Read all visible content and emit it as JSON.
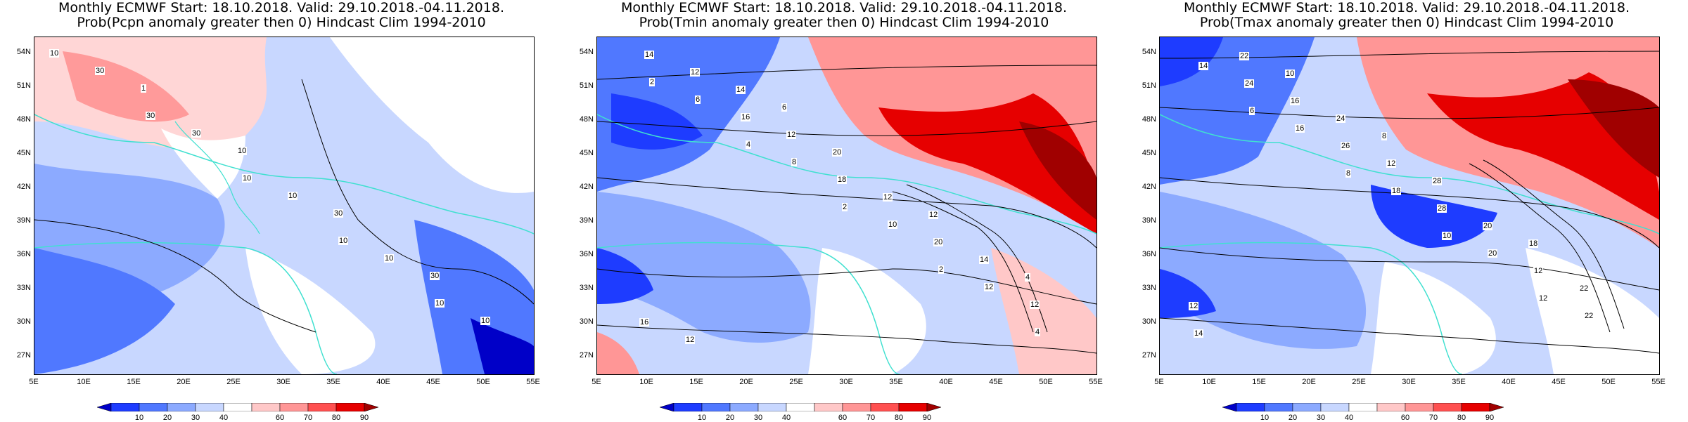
{
  "panels": [
    {
      "id": "pcpn",
      "title_line1": "Monthly ECMWF Start: 18.10.2018. Valid: 29.10.2018.-04.11.2018.",
      "title_line2": "Prob(Pcpn anomaly greater then 0) Hindcast Clim 1994-2010",
      "contour_labels": [
        "10",
        "30",
        "10",
        "10",
        "10",
        "30",
        "30",
        "10",
        "10",
        "10",
        "1",
        "10",
        "30",
        "30"
      ]
    },
    {
      "id": "tmin",
      "title_line1": "Monthly ECMWF Start: 18.10.2018. Valid: 29.10.2018.-04.11.2018.",
      "title_line2": "Prob(Tmin anomaly greater then 0) Hindcast Clim 1994-2010",
      "contour_labels": [
        "2",
        "4",
        "2",
        "2",
        "4",
        "6",
        "8",
        "10",
        "12",
        "14",
        "16",
        "18",
        "20",
        "12",
        "12",
        "12",
        "12",
        "14",
        "16",
        "14",
        "20",
        "12",
        "4",
        "12",
        "6"
      ]
    },
    {
      "id": "tmax",
      "title_line1": "Monthly ECMWF Start: 18.10.2018. Valid: 29.10.2018.-04.11.2018.",
      "title_line2": "Prob(Tmax anomaly greater then 0) Hindcast Clim 1994-2010",
      "contour_labels": [
        "6",
        "8",
        "10",
        "12",
        "14",
        "16",
        "18",
        "20",
        "22",
        "24",
        "26",
        "28",
        "12",
        "14",
        "16",
        "12",
        "20",
        "22",
        "22",
        "24",
        "28",
        "18",
        "12",
        "10",
        "8"
      ]
    }
  ],
  "axes": {
    "y_ticks": [
      "54N",
      "51N",
      "48N",
      "45N",
      "42N",
      "39N",
      "36N",
      "33N",
      "30N",
      "27N"
    ],
    "x_ticks": [
      "5E",
      "10E",
      "15E",
      "20E",
      "25E",
      "30E",
      "35E",
      "40E",
      "45E",
      "50E",
      "55E"
    ]
  },
  "colorbar": {
    "labels": [
      "10",
      "20",
      "30",
      "40",
      "60",
      "70",
      "80",
      "90"
    ],
    "colors": [
      "#0000c8",
      "#1e3cff",
      "#5078ff",
      "#8caaff",
      "#c8d7ff",
      "#ffffff",
      "#ffc8c8",
      "#ff9696",
      "#ff5050",
      "#e60000",
      "#a00000"
    ]
  },
  "style": {
    "coast_color": "#40e0d0",
    "contour_color": "#000000"
  }
}
